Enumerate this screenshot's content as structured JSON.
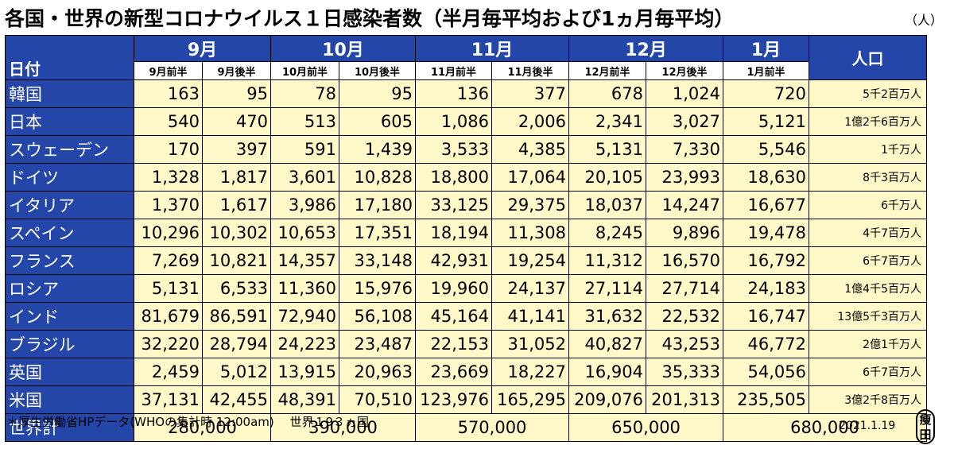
{
  "title": "各国・世界の新型コロナウイルス１日感染者数（半月毎平均および1ヵ月毎平均）",
  "unit": "（人）",
  "header": {
    "date_label": "日付",
    "population_label": "人口",
    "months": [
      "9月",
      "10月",
      "11月",
      "12月",
      "1月"
    ],
    "halves": [
      "9月前半",
      "9月後半",
      "10月前半",
      "10月後半",
      "11月前半",
      "11月後半",
      "12月前半",
      "12月後半",
      "1月前半"
    ]
  },
  "rows": [
    {
      "country": "韓国",
      "values": [
        "163",
        "95",
        "78",
        "95",
        "136",
        "377",
        "678",
        "1,024",
        "720"
      ],
      "population": "5千2百万人"
    },
    {
      "country": "日本",
      "values": [
        "540",
        "470",
        "513",
        "605",
        "1,086",
        "2,006",
        "2,341",
        "3,027",
        "5,121"
      ],
      "population": "1億2千6百万人"
    },
    {
      "country": "スウェーデン",
      "values": [
        "170",
        "397",
        "591",
        "1,439",
        "3,533",
        "4,385",
        "5,131",
        "7,330",
        "5,546"
      ],
      "population": "1千万人"
    },
    {
      "country": "ドイツ",
      "values": [
        "1,328",
        "1,817",
        "3,601",
        "10,828",
        "18,800",
        "17,064",
        "20,105",
        "23,993",
        "18,630"
      ],
      "population": "8千3百万人"
    },
    {
      "country": "イタリア",
      "values": [
        "1,370",
        "1,617",
        "3,986",
        "17,180",
        "33,125",
        "29,375",
        "18,037",
        "14,247",
        "16,677"
      ],
      "population": "6千万人"
    },
    {
      "country": "スペイン",
      "values": [
        "10,296",
        "10,302",
        "10,653",
        "17,351",
        "18,194",
        "11,308",
        "8,245",
        "9,896",
        "19,478"
      ],
      "population": "4千7百万人"
    },
    {
      "country": "フランス",
      "values": [
        "7,269",
        "10,821",
        "14,357",
        "33,148",
        "42,931",
        "19,254",
        "11,312",
        "16,570",
        "16,792"
      ],
      "population": "6千7百万人"
    },
    {
      "country": "ロシア",
      "values": [
        "5,131",
        "6,533",
        "11,360",
        "15,976",
        "19,960",
        "24,137",
        "27,114",
        "27,714",
        "24,183"
      ],
      "population": "1億4千5百万人"
    },
    {
      "country": "インド",
      "values": [
        "81,679",
        "86,591",
        "72,940",
        "56,108",
        "45,164",
        "41,141",
        "31,632",
        "22,532",
        "16,747"
      ],
      "population": "13億5千3百万人"
    },
    {
      "country": "ブラジル",
      "values": [
        "32,220",
        "28,794",
        "24,223",
        "23,487",
        "22,153",
        "31,052",
        "40,827",
        "43,253",
        "46,772"
      ],
      "population": "2億1千万人"
    },
    {
      "country": "英国",
      "values": [
        "2,459",
        "5,012",
        "13,915",
        "20,963",
        "23,669",
        "18,227",
        "16,904",
        "35,333",
        "54,056"
      ],
      "population": "6千7百万人"
    },
    {
      "country": "米国",
      "values": [
        "37,131",
        "42,455",
        "48,391",
        "70,510",
        "123,976",
        "165,295",
        "209,076",
        "201,313",
        "235,505"
      ],
      "population": "3億2千8百万人"
    }
  ],
  "total": {
    "label": "世界計",
    "values": [
      "280,000",
      "390,000",
      "570,000",
      "650,000",
      "680,000"
    ]
  },
  "footnote": "＊厚生労働省HPデータ(WHOの集計時 12:00am)　 世界１9３ヵ国",
  "date": "2021.1.19",
  "seal": [
    "痩",
    "田"
  ]
}
